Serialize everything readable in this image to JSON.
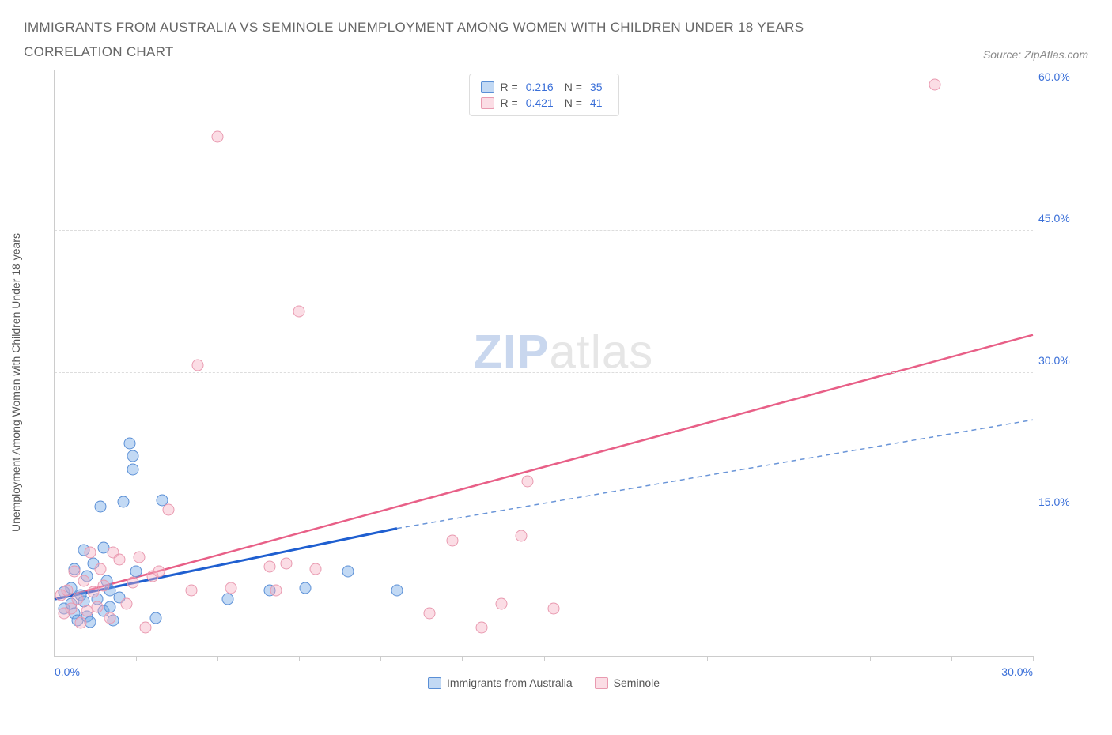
{
  "title": "IMMIGRANTS FROM AUSTRALIA VS SEMINOLE UNEMPLOYMENT AMONG WOMEN WITH CHILDREN UNDER 18 YEARS CORRELATION CHART",
  "source": "Source: ZipAtlas.com",
  "y_axis_label": "Unemployment Among Women with Children Under 18 years",
  "watermark_a": "ZIP",
  "watermark_b": "atlas",
  "axes": {
    "x_min": 0.0,
    "x_max": 30.0,
    "y_min": 0.0,
    "y_max": 62.0,
    "x_ticks": [
      0,
      2.5,
      5,
      7.5,
      10,
      12.5,
      15,
      17.5,
      20,
      22.5,
      25,
      27.5,
      30
    ],
    "x_tick_labels": {
      "0": "0.0%",
      "30": "30.0%"
    },
    "y_gridlines": [
      15,
      30,
      45,
      60
    ],
    "y_tick_labels": {
      "15": "15.0%",
      "30": "30.0%",
      "45": "45.0%",
      "60": "60.0%"
    }
  },
  "colors": {
    "blue_fill": "rgba(120,170,230,0.45)",
    "blue_stroke": "#5a8fd6",
    "pink_fill": "rgba(245,170,190,0.40)",
    "pink_stroke": "#e99ab0",
    "blue_line": "#1f5fd0",
    "blue_dash": "#6a95d8",
    "pink_line": "#e85f87",
    "axis_label": "#3a6fd8",
    "text": "#555"
  },
  "series": [
    {
      "id": "blue",
      "name": "Immigrants from Australia",
      "r": "0.216",
      "n": "35",
      "x_range": [
        0,
        10.5
      ],
      "trend": {
        "x1": 0,
        "y1": 6.0,
        "x2": 10.5,
        "y2": 13.5,
        "x2_ext": 30,
        "y2_ext": 25.0
      },
      "points": [
        [
          0.3,
          5.0
        ],
        [
          0.3,
          6.8
        ],
        [
          0.5,
          5.5
        ],
        [
          0.5,
          7.2
        ],
        [
          0.6,
          9.2
        ],
        [
          0.6,
          4.5
        ],
        [
          0.7,
          3.8
        ],
        [
          0.8,
          6.5
        ],
        [
          0.9,
          5.8
        ],
        [
          0.9,
          11.2
        ],
        [
          1.0,
          4.2
        ],
        [
          1.0,
          8.5
        ],
        [
          1.1,
          3.6
        ],
        [
          1.2,
          9.8
        ],
        [
          1.3,
          6.0
        ],
        [
          1.4,
          15.8
        ],
        [
          1.5,
          11.5
        ],
        [
          1.5,
          4.8
        ],
        [
          1.6,
          8.0
        ],
        [
          1.7,
          5.2
        ],
        [
          1.7,
          7.0
        ],
        [
          1.8,
          3.8
        ],
        [
          2.0,
          6.2
        ],
        [
          2.1,
          16.3
        ],
        [
          2.3,
          22.5
        ],
        [
          2.4,
          19.8
        ],
        [
          2.4,
          21.2
        ],
        [
          2.5,
          9.0
        ],
        [
          3.1,
          4.0
        ],
        [
          3.3,
          16.5
        ],
        [
          5.3,
          6.0
        ],
        [
          6.6,
          7.0
        ],
        [
          7.7,
          7.2
        ],
        [
          9.0,
          9.0
        ],
        [
          10.5,
          7.0
        ]
      ]
    },
    {
      "id": "pink",
      "name": "Seminole",
      "r": "0.421",
      "n": "41",
      "x_range": [
        0,
        30
      ],
      "trend": {
        "x1": 0,
        "y1": 6.0,
        "x2": 30,
        "y2": 34.0
      },
      "points": [
        [
          0.2,
          6.5
        ],
        [
          0.3,
          4.5
        ],
        [
          0.4,
          7.0
        ],
        [
          0.5,
          5.0
        ],
        [
          0.6,
          9.0
        ],
        [
          0.7,
          6.0
        ],
        [
          0.8,
          3.5
        ],
        [
          0.9,
          8.0
        ],
        [
          1.0,
          4.8
        ],
        [
          1.1,
          11.0
        ],
        [
          1.2,
          6.8
        ],
        [
          1.3,
          5.2
        ],
        [
          1.4,
          9.2
        ],
        [
          1.5,
          7.5
        ],
        [
          1.7,
          4.0
        ],
        [
          1.8,
          11.0
        ],
        [
          2.0,
          10.2
        ],
        [
          2.2,
          5.5
        ],
        [
          2.4,
          7.8
        ],
        [
          2.6,
          10.5
        ],
        [
          2.8,
          3.0
        ],
        [
          3.0,
          8.5
        ],
        [
          3.2,
          9.0
        ],
        [
          3.5,
          15.5
        ],
        [
          4.2,
          7.0
        ],
        [
          4.4,
          30.8
        ],
        [
          5.0,
          55.0
        ],
        [
          5.4,
          7.2
        ],
        [
          6.6,
          9.5
        ],
        [
          6.8,
          7.0
        ],
        [
          7.1,
          9.8
        ],
        [
          7.5,
          36.5
        ],
        [
          8.0,
          9.2
        ],
        [
          11.5,
          4.5
        ],
        [
          12.2,
          12.2
        ],
        [
          13.1,
          3.0
        ],
        [
          13.7,
          5.5
        ],
        [
          14.3,
          12.7
        ],
        [
          14.5,
          18.5
        ],
        [
          15.3,
          5.0
        ],
        [
          27.0,
          60.5
        ]
      ]
    }
  ],
  "legend_bottom": [
    {
      "series": "blue",
      "label": "Immigrants from Australia"
    },
    {
      "series": "pink",
      "label": "Seminole"
    }
  ]
}
